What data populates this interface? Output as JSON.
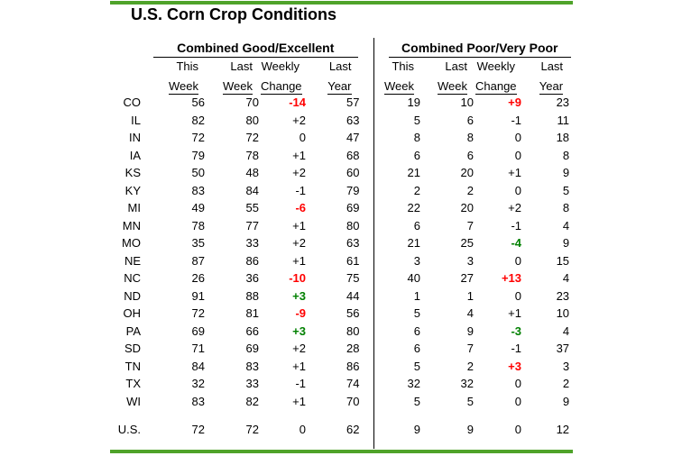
{
  "colors": {
    "accent_green": "#4FA32A",
    "negative_red": "#FF0000",
    "positive_green": "#008000",
    "text": "#000000"
  },
  "chart_data": {
    "type": "table",
    "title": "U.S. Corn Crop Conditions",
    "sections": [
      {
        "key": "good",
        "label": "Combined Good/Excellent"
      },
      {
        "key": "poor",
        "label": "Combined Poor/Very Poor"
      }
    ],
    "column_headers_line1": [
      "This",
      "Last",
      "Weekly",
      "Last"
    ],
    "column_headers_line2": [
      "Week",
      "Week",
      "Change",
      "Year"
    ],
    "rows": [
      {
        "state": "CO",
        "good": {
          "this_week": 56,
          "last_week": 70,
          "weekly_change": "-14",
          "change_color": "red",
          "last_year": 57
        },
        "poor": {
          "this_week": 19,
          "last_week": 10,
          "weekly_change": "+9",
          "change_color": "red",
          "last_year": 23
        }
      },
      {
        "state": "IL",
        "good": {
          "this_week": 82,
          "last_week": 80,
          "weekly_change": "+2",
          "change_color": "black",
          "last_year": 63
        },
        "poor": {
          "this_week": 5,
          "last_week": 6,
          "weekly_change": "-1",
          "change_color": "black",
          "last_year": 11
        }
      },
      {
        "state": "IN",
        "good": {
          "this_week": 72,
          "last_week": 72,
          "weekly_change": "0",
          "change_color": "black",
          "last_year": 47
        },
        "poor": {
          "this_week": 8,
          "last_week": 8,
          "weekly_change": "0",
          "change_color": "black",
          "last_year": 18
        }
      },
      {
        "state": "IA",
        "good": {
          "this_week": 79,
          "last_week": 78,
          "weekly_change": "+1",
          "change_color": "black",
          "last_year": 68
        },
        "poor": {
          "this_week": 6,
          "last_week": 6,
          "weekly_change": "0",
          "change_color": "black",
          "last_year": 8
        }
      },
      {
        "state": "KS",
        "good": {
          "this_week": 50,
          "last_week": 48,
          "weekly_change": "+2",
          "change_color": "black",
          "last_year": 60
        },
        "poor": {
          "this_week": 21,
          "last_week": 20,
          "weekly_change": "+1",
          "change_color": "black",
          "last_year": 9
        }
      },
      {
        "state": "KY",
        "good": {
          "this_week": 83,
          "last_week": 84,
          "weekly_change": "-1",
          "change_color": "black",
          "last_year": 79
        },
        "poor": {
          "this_week": 2,
          "last_week": 2,
          "weekly_change": "0",
          "change_color": "black",
          "last_year": 5
        }
      },
      {
        "state": "MI",
        "good": {
          "this_week": 49,
          "last_week": 55,
          "weekly_change": "-6",
          "change_color": "red",
          "last_year": 69
        },
        "poor": {
          "this_week": 22,
          "last_week": 20,
          "weekly_change": "+2",
          "change_color": "black",
          "last_year": 8
        }
      },
      {
        "state": "MN",
        "good": {
          "this_week": 78,
          "last_week": 77,
          "weekly_change": "+1",
          "change_color": "black",
          "last_year": 80
        },
        "poor": {
          "this_week": 6,
          "last_week": 7,
          "weekly_change": "-1",
          "change_color": "black",
          "last_year": 4
        }
      },
      {
        "state": "MO",
        "good": {
          "this_week": 35,
          "last_week": 33,
          "weekly_change": "+2",
          "change_color": "black",
          "last_year": 63
        },
        "poor": {
          "this_week": 21,
          "last_week": 25,
          "weekly_change": "-4",
          "change_color": "green",
          "last_year": 9
        }
      },
      {
        "state": "NE",
        "good": {
          "this_week": 87,
          "last_week": 86,
          "weekly_change": "+1",
          "change_color": "black",
          "last_year": 61
        },
        "poor": {
          "this_week": 3,
          "last_week": 3,
          "weekly_change": "0",
          "change_color": "black",
          "last_year": 15
        }
      },
      {
        "state": "NC",
        "good": {
          "this_week": 26,
          "last_week": 36,
          "weekly_change": "-10",
          "change_color": "red",
          "last_year": 75
        },
        "poor": {
          "this_week": 40,
          "last_week": 27,
          "weekly_change": "+13",
          "change_color": "red",
          "last_year": 4
        }
      },
      {
        "state": "ND",
        "good": {
          "this_week": 91,
          "last_week": 88,
          "weekly_change": "+3",
          "change_color": "green",
          "last_year": 44
        },
        "poor": {
          "this_week": 1,
          "last_week": 1,
          "weekly_change": "0",
          "change_color": "black",
          "last_year": 23
        }
      },
      {
        "state": "OH",
        "good": {
          "this_week": 72,
          "last_week": 81,
          "weekly_change": "-9",
          "change_color": "red",
          "last_year": 56
        },
        "poor": {
          "this_week": 5,
          "last_week": 4,
          "weekly_change": "+1",
          "change_color": "black",
          "last_year": 10
        }
      },
      {
        "state": "PA",
        "good": {
          "this_week": 69,
          "last_week": 66,
          "weekly_change": "+3",
          "change_color": "green",
          "last_year": 80
        },
        "poor": {
          "this_week": 6,
          "last_week": 9,
          "weekly_change": "-3",
          "change_color": "green",
          "last_year": 4
        }
      },
      {
        "state": "SD",
        "good": {
          "this_week": 71,
          "last_week": 69,
          "weekly_change": "+2",
          "change_color": "black",
          "last_year": 28
        },
        "poor": {
          "this_week": 6,
          "last_week": 7,
          "weekly_change": "-1",
          "change_color": "black",
          "last_year": 37
        }
      },
      {
        "state": "TN",
        "good": {
          "this_week": 84,
          "last_week": 83,
          "weekly_change": "+1",
          "change_color": "black",
          "last_year": 86
        },
        "poor": {
          "this_week": 5,
          "last_week": 2,
          "weekly_change": "+3",
          "change_color": "red",
          "last_year": 3
        }
      },
      {
        "state": "TX",
        "good": {
          "this_week": 32,
          "last_week": 33,
          "weekly_change": "-1",
          "change_color": "black",
          "last_year": 74
        },
        "poor": {
          "this_week": 32,
          "last_week": 32,
          "weekly_change": "0",
          "change_color": "black",
          "last_year": 2
        }
      },
      {
        "state": "WI",
        "good": {
          "this_week": 83,
          "last_week": 82,
          "weekly_change": "+1",
          "change_color": "black",
          "last_year": 70
        },
        "poor": {
          "this_week": 5,
          "last_week": 5,
          "weekly_change": "0",
          "change_color": "black",
          "last_year": 9
        }
      }
    ],
    "total_row": {
      "state": "U.S.",
      "good": {
        "this_week": 72,
        "last_week": 72,
        "weekly_change": "0",
        "change_color": "black",
        "last_year": 62
      },
      "poor": {
        "this_week": 9,
        "last_week": 9,
        "weekly_change": "0",
        "change_color": "black",
        "last_year": 12
      }
    }
  }
}
